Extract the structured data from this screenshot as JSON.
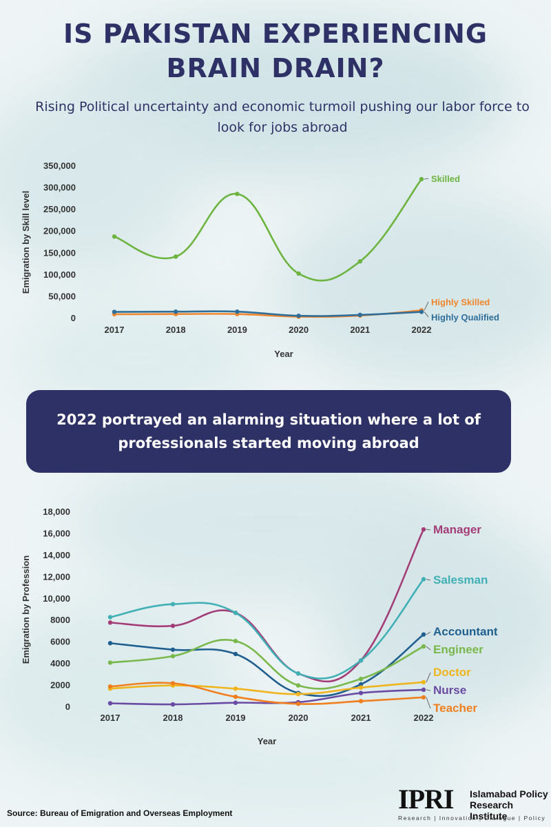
{
  "header": {
    "title_line1": "IS PAKISTAN EXPERIENCING",
    "title_line2": "BRAIN DRAIN?",
    "subtitle": "Rising Political uncertainty and economic turmoil pushing our labor force to look for jobs abroad"
  },
  "banner": {
    "text": "2022 portrayed an alarming situation where a lot of professionals started moving abroad"
  },
  "chart_data": [
    {
      "type": "line",
      "xlabel": "Year",
      "ylabel": "Emigration by Skill level",
      "x": [
        "2017",
        "2018",
        "2019",
        "2020",
        "2021",
        "2022"
      ],
      "ylim": [
        0,
        350000
      ],
      "yticks": [
        "0",
        "50,000",
        "100,000",
        "150,000",
        "200,000",
        "250,000",
        "300,000",
        "350,000"
      ],
      "grid": false,
      "series": [
        {
          "name": "Skilled",
          "color": "#6db33f",
          "values": [
            188000,
            142000,
            286000,
            103000,
            131000,
            320000
          ]
        },
        {
          "name": "Highly Skilled",
          "color": "#f0862d",
          "values": [
            9500,
            10000,
            10000,
            4000,
            6500,
            18500
          ]
        },
        {
          "name": "Highly Qualified",
          "color": "#2e6e99",
          "values": [
            15000,
            15500,
            15500,
            6000,
            8000,
            15000
          ]
        }
      ]
    },
    {
      "type": "line",
      "xlabel": "Year",
      "ylabel": "Emigration by Profession",
      "x": [
        "2017",
        "2018",
        "2019",
        "2020",
        "2021",
        "2022"
      ],
      "ylim": [
        0,
        18000
      ],
      "yticks": [
        "0",
        "2000",
        "4000",
        "6000",
        "8000",
        "10,000",
        "12,000",
        "14,000",
        "16,000",
        "18,000"
      ],
      "grid": false,
      "series": [
        {
          "name": "Manager",
          "color": "#a33d77",
          "values": [
            7800,
            7500,
            8700,
            3100,
            4300,
            16400
          ]
        },
        {
          "name": "Salesman",
          "color": "#40b0b5",
          "values": [
            8300,
            9500,
            8700,
            3100,
            4300,
            11800
          ]
        },
        {
          "name": "Accountant",
          "color": "#1f5f8f",
          "values": [
            5900,
            5300,
            4900,
            1300,
            2100,
            6700
          ]
        },
        {
          "name": "Engineer",
          "color": "#79b84a",
          "values": [
            4100,
            4700,
            6100,
            2000,
            2600,
            5600
          ]
        },
        {
          "name": "Doctor",
          "color": "#f0b41c",
          "values": [
            1700,
            2000,
            1700,
            1200,
            1800,
            2300
          ]
        },
        {
          "name": "Nurse",
          "color": "#6a4aa3",
          "values": [
            350,
            250,
            400,
            450,
            1300,
            1600
          ]
        },
        {
          "name": "Teacher",
          "color": "#ef7f1f",
          "values": [
            1900,
            2200,
            950,
            300,
            550,
            900
          ]
        }
      ]
    }
  ],
  "footer": {
    "source": "Source: Bureau of Emigration and Overseas Employment",
    "logo_mark": "IPRI",
    "logo_name_line1": "Islamabad Policy",
    "logo_name_line2": "Research Institute",
    "logo_tagline": "Research | Innovation | Dialogue | Policy"
  }
}
